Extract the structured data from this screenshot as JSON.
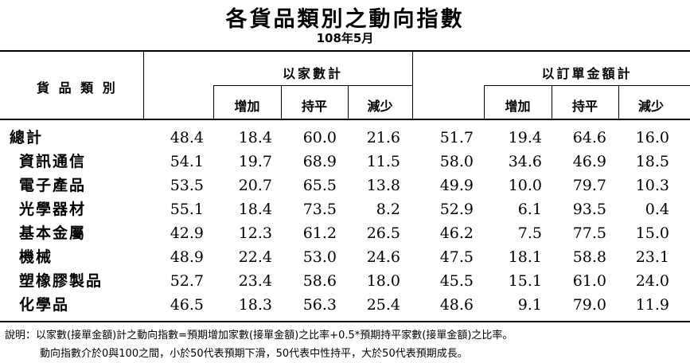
{
  "title": "各貨品類別之動向指數",
  "subtitle": "108年5月",
  "table": {
    "category_header": "貨 品 類 別",
    "group_headers": [
      "以家數計",
      "以訂單金額計"
    ],
    "sub_headers": [
      "增加",
      "持平",
      "減少"
    ],
    "rows": [
      {
        "label": "總計",
        "values": [
          "48.4",
          "18.4",
          "60.0",
          "21.6",
          "51.7",
          "19.4",
          "64.6",
          "16.0"
        ]
      },
      {
        "label": "資訊通信",
        "values": [
          "54.1",
          "19.7",
          "68.9",
          "11.5",
          "58.0",
          "34.6",
          "46.9",
          "18.5"
        ]
      },
      {
        "label": "電子產品",
        "values": [
          "53.5",
          "20.7",
          "65.5",
          "13.8",
          "49.9",
          "10.0",
          "79.7",
          "10.3"
        ]
      },
      {
        "label": "光學器材",
        "values": [
          "55.1",
          "18.4",
          "73.5",
          "8.2",
          "52.9",
          "6.1",
          "93.5",
          "0.4"
        ]
      },
      {
        "label": "基本金屬",
        "values": [
          "42.9",
          "12.3",
          "61.2",
          "26.5",
          "46.2",
          "7.5",
          "77.5",
          "15.0"
        ]
      },
      {
        "label": "機械",
        "values": [
          "48.9",
          "22.4",
          "53.0",
          "24.6",
          "47.5",
          "18.1",
          "58.8",
          "23.1"
        ]
      },
      {
        "label": "塑橡膠製品",
        "values": [
          "52.7",
          "23.4",
          "58.6",
          "18.0",
          "45.5",
          "15.1",
          "61.0",
          "24.0"
        ]
      },
      {
        "label": "化學品",
        "values": [
          "46.5",
          "18.3",
          "56.3",
          "25.4",
          "48.6",
          "9.1",
          "79.0",
          "11.9"
        ]
      }
    ]
  },
  "notes": [
    "說明：以家數(接單金額)計之動向指數=預期增加家數(接單金額)之比率+0.5*預期持平家數(接單金額)之比率。",
    "動向指數介於0與100之間，小於50代表預期下滑，50代表中性持平，大於50代表預期成長。"
  ]
}
